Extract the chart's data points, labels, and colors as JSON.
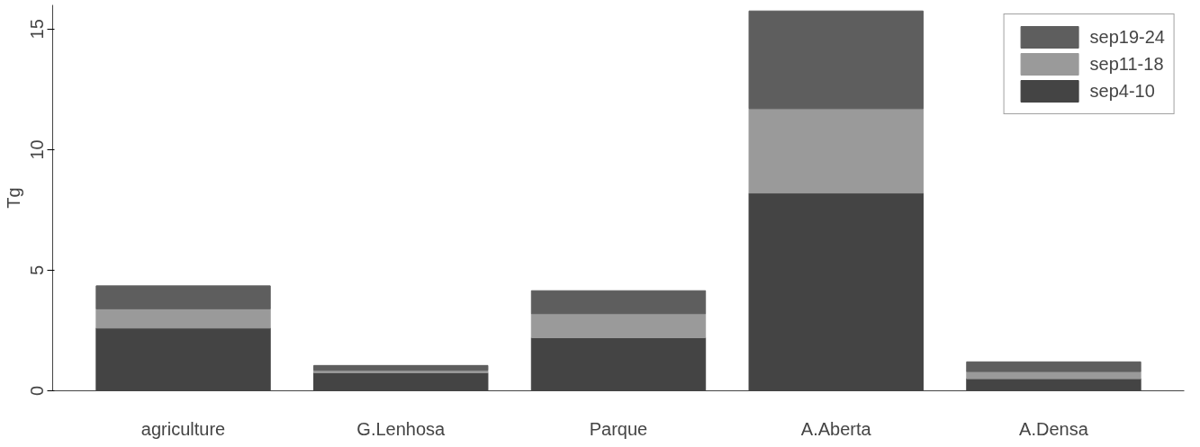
{
  "chart_data": {
    "type": "bar",
    "stacked": true,
    "ylabel": "Tg",
    "categories": [
      "agriculture",
      "G.Lenhosa",
      "Parque",
      "A.Aberta",
      "A.Densa"
    ],
    "series": [
      {
        "name": "sep4-10",
        "color": "#444444",
        "values": [
          2.6,
          0.75,
          2.2,
          8.2,
          0.5
        ]
      },
      {
        "name": "sep11-18",
        "color": "#9a9a9a",
        "values": [
          0.8,
          0.1,
          1.0,
          3.5,
          0.3
        ]
      },
      {
        "name": "sep19-24",
        "color": "#5e5e5e",
        "values": [
          0.95,
          0.2,
          0.95,
          4.05,
          0.4
        ]
      }
    ],
    "ylim": [
      0,
      16
    ],
    "yticks": [
      0,
      5,
      10,
      15
    ],
    "grid": false,
    "legend": "top right"
  }
}
